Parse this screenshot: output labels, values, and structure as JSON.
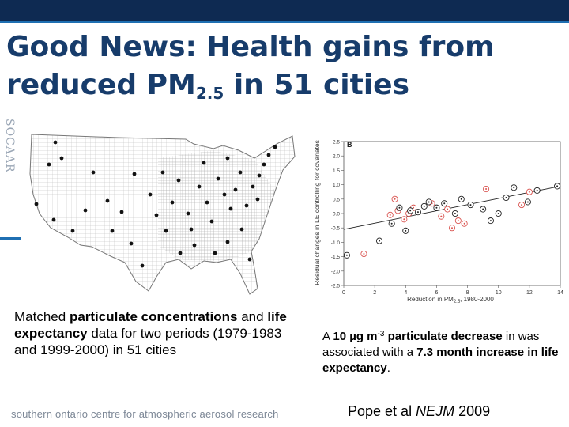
{
  "slide": {
    "title_bold": "Good News",
    "title_rest": ": Health gains from reduced PM",
    "title_sub": "2.5",
    "title_end": " in 51 cities",
    "side_logo": "SOCAAR"
  },
  "captions": {
    "left": [
      {
        "text": "Matched ",
        "bold": false
      },
      {
        "text": "particulate concentrations",
        "bold": true
      },
      {
        "text": " and ",
        "bold": false
      },
      {
        "text": "life expectancy",
        "bold": true
      },
      {
        "text": " data for two periods (1979-1983 and 1999-2000) in 51 cities",
        "bold": false
      }
    ],
    "right": {
      "pre": "A ",
      "amount": "10 µg m",
      "exp": "-3",
      "bold_1": " particulate decrease",
      "mid": " in was associated with a ",
      "bold_2": "7.3 month increase in life expectancy",
      "end": "."
    }
  },
  "footer": {
    "org_text": "southern ontario centre for atmospheric aerosol research",
    "citation_pre": "Pope et al ",
    "citation_journal": "NEJM",
    "citation_year": " 2009"
  },
  "chart_data": {
    "type": "scatter",
    "panel_label": "B",
    "xlabel": "Reduction in PM",
    "xlabel_sub": "2.5",
    "xlabel_suffix": ", 1980-2000",
    "ylabel": "Residual changes in LE controlling for covariates",
    "xlim": [
      0,
      14
    ],
    "ylim": [
      -2.5,
      2.5
    ],
    "x_ticks": [
      0,
      2,
      4,
      6,
      8,
      10,
      12,
      14
    ],
    "y_ticks": [
      2.5,
      2.0,
      1.5,
      1.0,
      0.5,
      0.0,
      -0.5,
      -1.0,
      -1.5,
      -2.0,
      -2.5
    ],
    "y_tick_labels": [
      "2.5",
      "2.0",
      "1.5",
      "1.0",
      "0.5",
      "0.0",
      "-0.5",
      "-1.0",
      "-1.5",
      "-2.0",
      "-2.5"
    ],
    "regression_line": {
      "x": [
        0,
        14
      ],
      "y": [
        -0.55,
        0.95
      ]
    },
    "series": [
      {
        "name": "red",
        "color": "#d9534f",
        "points": [
          [
            1.3,
            -1.4
          ],
          [
            3.3,
            0.5
          ],
          [
            3.0,
            -0.05
          ],
          [
            3.5,
            0.1
          ],
          [
            4.2,
            0.0
          ],
          [
            3.9,
            -0.2
          ],
          [
            4.5,
            0.2
          ],
          [
            5.7,
            0.35
          ],
          [
            6.3,
            -0.1
          ],
          [
            6.7,
            0.15
          ],
          [
            7.0,
            -0.5
          ],
          [
            7.4,
            -0.25
          ],
          [
            7.8,
            -0.35
          ],
          [
            9.2,
            0.85
          ],
          [
            11.5,
            0.3
          ],
          [
            12.0,
            0.75
          ]
        ]
      },
      {
        "name": "black",
        "color": "#222222",
        "points": [
          [
            0.2,
            -1.45
          ],
          [
            2.3,
            -0.95
          ],
          [
            3.1,
            -0.35
          ],
          [
            3.6,
            0.2
          ],
          [
            4.0,
            -0.6
          ],
          [
            4.3,
            0.1
          ],
          [
            4.8,
            0.05
          ],
          [
            5.2,
            0.25
          ],
          [
            5.5,
            0.4
          ],
          [
            6.0,
            0.2
          ],
          [
            6.5,
            0.35
          ],
          [
            7.2,
            0.0
          ],
          [
            7.6,
            0.5
          ],
          [
            8.2,
            0.3
          ],
          [
            9.0,
            0.15
          ],
          [
            9.5,
            -0.25
          ],
          [
            10.0,
            0.0
          ],
          [
            10.5,
            0.55
          ],
          [
            11.0,
            0.9
          ],
          [
            11.9,
            0.4
          ],
          [
            12.5,
            0.8
          ],
          [
            13.8,
            0.95
          ]
        ]
      }
    ]
  }
}
